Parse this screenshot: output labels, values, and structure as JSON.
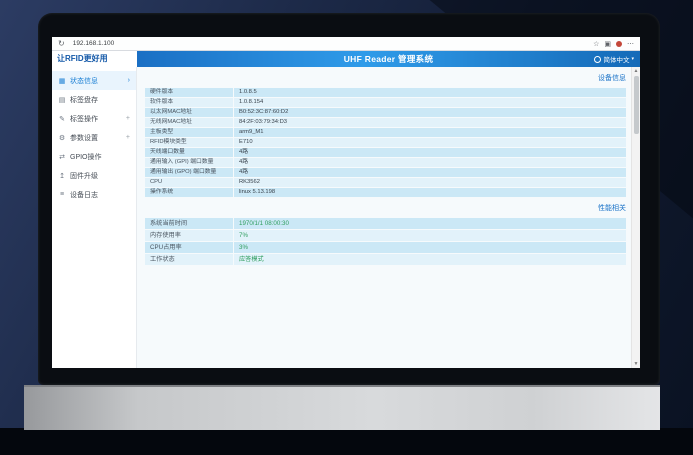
{
  "browser": {
    "url": "192.168.1.100",
    "reload_icon": "↻",
    "star_icon": "☆",
    "extensions_icon": "▣",
    "menu_icon": "⋯"
  },
  "header": {
    "logo": "让RFID更好用",
    "title": "UHF Reader 管理系统",
    "language": "简体中文",
    "language_caret": "▾"
  },
  "sidebar": {
    "items": [
      {
        "icon": "▦",
        "label": "状态信息",
        "suffix": "›",
        "active": true
      },
      {
        "icon": "▤",
        "label": "标签盘存",
        "suffix": ""
      },
      {
        "icon": "✎",
        "label": "标签操作",
        "suffix": "+"
      },
      {
        "icon": "⚙",
        "label": "参数设置",
        "suffix": "+"
      },
      {
        "icon": "⇄",
        "label": "GPIO操作",
        "suffix": ""
      },
      {
        "icon": "↥",
        "label": "固件升级",
        "suffix": ""
      },
      {
        "icon": "≡",
        "label": "设备日志",
        "suffix": ""
      }
    ]
  },
  "device_info": {
    "section_link": "设备信息",
    "rows": [
      {
        "label": "硬件版本",
        "value": "1.0.8.5"
      },
      {
        "label": "软件版本",
        "value": "1.0.8.154"
      },
      {
        "label": "以太网MAC地址",
        "value": "B0:52:3C:87:60:D2"
      },
      {
        "label": "无线网MAC地址",
        "value": "84:2F:03:79:34:D3"
      },
      {
        "label": "主板类型",
        "value": "arm9_M1"
      },
      {
        "label": "RFID模块类型",
        "value": "E710"
      },
      {
        "label": "天线端口数量",
        "value": "4路"
      },
      {
        "label": "通用输入 (GPI) 端口数量",
        "value": "4路"
      },
      {
        "label": "通用输出 (GPO) 端口数量",
        "value": "4路"
      },
      {
        "label": "CPU",
        "value": "RK3562"
      },
      {
        "label": "操作系统",
        "value": "linux 5.13.198"
      }
    ]
  },
  "performance": {
    "section_link": "性能相关",
    "rows": [
      {
        "label": "系统当前时间",
        "value": "1970/1/1 08:00:30"
      },
      {
        "label": "内存使用率",
        "value": "7%"
      },
      {
        "label": "CPU占用率",
        "value": "3%"
      },
      {
        "label": "工作状态",
        "value": "应答模式"
      }
    ]
  },
  "scrollbar": {
    "up": "▲",
    "down": "▼"
  },
  "colors": {
    "accent_blue": "#1a73c8",
    "header_gradient_mid": "#2f9be9",
    "row_dark": "#cbe8f6",
    "row_light": "#e2f2fa",
    "value_green": "#2f9e5f"
  }
}
